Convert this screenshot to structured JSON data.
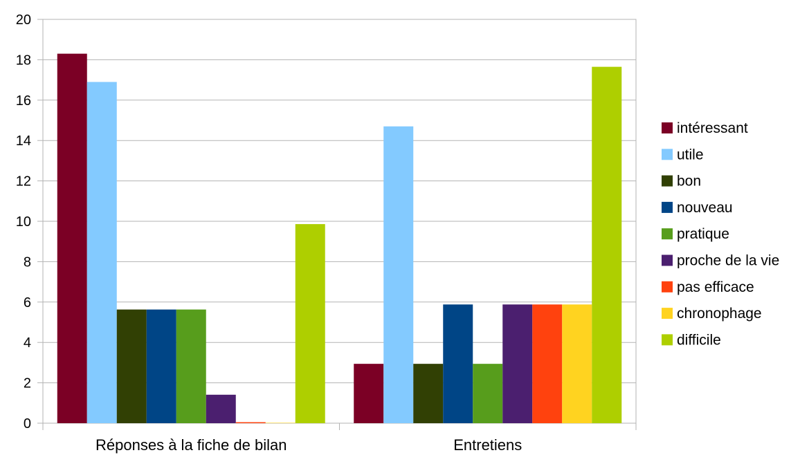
{
  "chart_data": {
    "type": "bar",
    "categories": [
      "Réponses à la fiche de bilan",
      "Entretiens"
    ],
    "series": [
      {
        "name": "intéressant",
        "color": "#7b0025",
        "values": [
          18.3,
          2.94
        ]
      },
      {
        "name": "utile",
        "color": "#83caff",
        "values": [
          16.9,
          14.7
        ]
      },
      {
        "name": "bon",
        "color": "#314004",
        "values": [
          5.63,
          2.94
        ]
      },
      {
        "name": "nouveau",
        "color": "#004586",
        "values": [
          5.63,
          5.88
        ]
      },
      {
        "name": "pratique",
        "color": "#579d1c",
        "values": [
          5.63,
          2.94
        ]
      },
      {
        "name": "proche de la vie",
        "color": "#4b1f6f",
        "values": [
          1.41,
          5.88
        ]
      },
      {
        "name": "pas efficace",
        "color": "#ff420e",
        "values": [
          0.05,
          5.88
        ]
      },
      {
        "name": "chronophage",
        "color": "#ffd320",
        "values": [
          0.02,
          5.88
        ]
      },
      {
        "name": "difficile",
        "color": "#aecf00",
        "values": [
          9.86,
          17.65
        ]
      }
    ],
    "yticks": [
      "0",
      "2",
      "4",
      "6",
      "8",
      "10",
      "12",
      "14",
      "16",
      "18",
      "20"
    ],
    "ylim": [
      0,
      20
    ],
    "grid": true,
    "legend_position": "right"
  }
}
